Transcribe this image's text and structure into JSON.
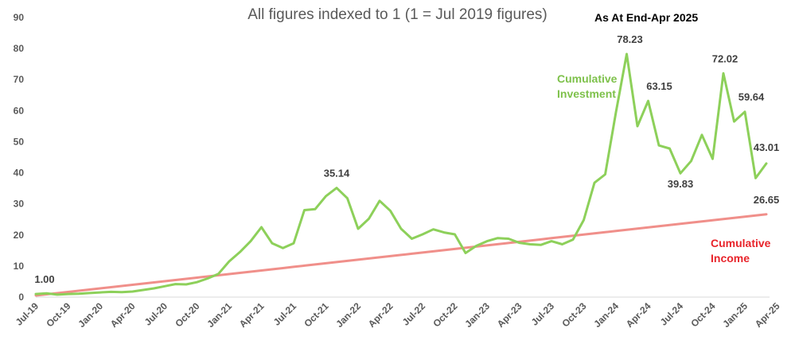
{
  "chart_data": {
    "type": "line",
    "title": "All figures indexed to 1 (1 = Jul 2019 figures)",
    "annotation": "As At End-Apr 2025",
    "ylim": [
      0,
      90
    ],
    "yticks": [
      0,
      10,
      20,
      30,
      40,
      50,
      60,
      70,
      80,
      90
    ],
    "grid": false,
    "x_tick_labels": [
      "Jul-19",
      "Oct-19",
      "Jan-20",
      "Apr-20",
      "Jul-20",
      "Oct-20",
      "Jan-21",
      "Apr-21",
      "Jul-21",
      "Oct-21",
      "Jan-22",
      "Apr-22",
      "Jul-22",
      "Oct-22",
      "Jan-23",
      "Apr-23",
      "Jul-23",
      "Oct-23",
      "Jan-24",
      "Apr-24",
      "Jul-24",
      "Oct-24",
      "Jan-25",
      "Apr-25"
    ],
    "series": [
      {
        "name": "Cumulative Investment",
        "label_lines": [
          "Cumulative",
          "Investment"
        ],
        "color": "#8dd05a",
        "values": [
          1.0,
          1.2,
          0.8,
          1.0,
          1.1,
          1.3,
          1.5,
          1.7,
          1.6,
          1.8,
          2.3,
          2.8,
          3.5,
          4.2,
          4.1,
          4.8,
          6.0,
          7.5,
          11.5,
          14.5,
          18.0,
          22.5,
          17.3,
          15.8,
          17.3,
          28.0,
          28.3,
          32.5,
          35.14,
          31.8,
          22.0,
          25.2,
          31.0,
          27.8,
          22.0,
          18.8,
          20.2,
          21.8,
          20.8,
          20.2,
          14.2,
          16.5,
          18.0,
          19.0,
          18.8,
          17.5,
          17.0,
          16.8,
          18.0,
          17.0,
          18.5,
          24.8,
          36.8,
          39.5,
          59.5,
          78.23,
          55.0,
          63.15,
          48.8,
          47.8,
          39.83,
          43.8,
          52.2,
          44.5,
          72.02,
          56.5,
          59.64,
          38.3,
          43.01
        ],
        "data_labels": [
          {
            "index": 0,
            "text": "1.00"
          },
          {
            "index": 28,
            "text": "35.14"
          },
          {
            "index": 55,
            "text": "78.23"
          },
          {
            "index": 57,
            "text": "63.15"
          },
          {
            "index": 60,
            "text": "39.83"
          },
          {
            "index": 64,
            "text": "72.02"
          },
          {
            "index": 66,
            "text": "59.64"
          },
          {
            "index": 68,
            "text": "43.01"
          }
        ]
      },
      {
        "name": "Cumulative Income",
        "label_lines": [
          "Cumulative",
          "Income"
        ],
        "color": "#f08f8a",
        "start": 0.5,
        "end": 26.65,
        "data_labels": [
          {
            "index": 68,
            "text": "26.65"
          }
        ]
      }
    ]
  }
}
